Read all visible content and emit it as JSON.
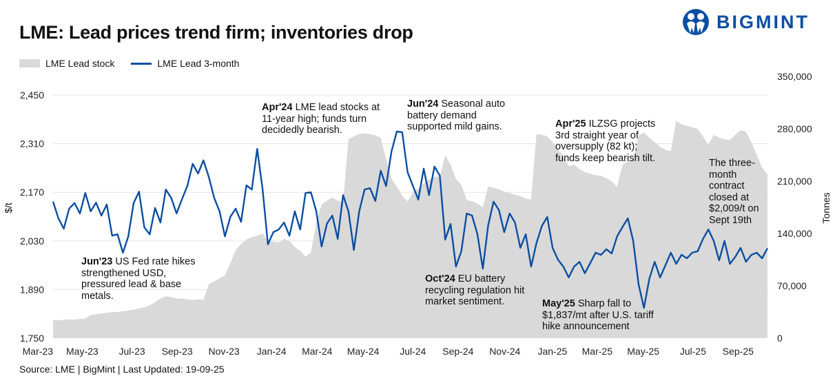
{
  "logo": {
    "text": "BIGMINT",
    "brand_color": "#0b4ea2"
  },
  "source": "Source: LME | BigMint | Last Updated: 19-09-25",
  "chart_data": {
    "type": "line+area",
    "title": "LME: Lead prices trend firm; inventories drop",
    "legend_position": "top-left",
    "grid": true,
    "x": {
      "start": "2023-03-03",
      "end": "2025-09-19",
      "frequency": "weekly",
      "tick_labels": [
        "Mar-23",
        "May-23",
        "Jul-23",
        "Sep-23",
        "Nov-23",
        "Jan-24",
        "Mar-24",
        "May-24",
        "Jul-24",
        "Sep-24",
        "Nov-24",
        "Jan-25",
        "Mar-25",
        "May-25",
        "Jul-25",
        "Sep-25"
      ],
      "tick_dates": [
        "2023-03-01",
        "2023-05-01",
        "2023-07-01",
        "2023-09-01",
        "2023-11-01",
        "2024-01-01",
        "2024-03-01",
        "2024-05-01",
        "2024-07-01",
        "2024-09-01",
        "2024-11-01",
        "2025-01-01",
        "2025-03-01",
        "2025-05-01",
        "2025-07-01",
        "2025-09-01"
      ]
    },
    "y_left": {
      "label": "$/t",
      "ylim": [
        1750,
        2450
      ],
      "tick_labels": [
        "1,750",
        "1,890",
        "2,030",
        "2,170",
        "2,310",
        "2,450"
      ],
      "ticks": [
        1750,
        1890,
        2030,
        2170,
        2310,
        2450
      ]
    },
    "y_right": {
      "label": "Tonnes",
      "ylim": [
        0,
        350000
      ],
      "tick_labels": [
        "0",
        "70,000",
        "140,000",
        "210,000",
        "280,000",
        "350,000"
      ],
      "ticks": [
        0,
        70000,
        140000,
        210000,
        280000,
        350000
      ]
    },
    "series": [
      {
        "name": "LME Lead stock",
        "type": "area",
        "axis": "right",
        "color": "#d9d9d9",
        "values": [
          24000,
          24000,
          24500,
          25000,
          25000,
          25500,
          26000,
          31000,
          32000,
          33000,
          34000,
          35000,
          35000,
          36000,
          37000,
          38000,
          40000,
          41000,
          44000,
          48000,
          53000,
          56000,
          55000,
          53000,
          53000,
          52000,
          51000,
          52000,
          51000,
          72000,
          76000,
          80000,
          84000,
          100000,
          118000,
          126000,
          132000,
          135000,
          137000,
          140000,
          130000,
          129000,
          128000,
          133000,
          130000,
          122000,
          117000,
          109000,
          115000,
          155000,
          179000,
          184000,
          188000,
          184000,
          182000,
          266000,
          270000,
          273000,
          274000,
          273000,
          271000,
          268000,
          240000,
          213000,
          203000,
          190000,
          183000,
          195000,
          200000,
          207000,
          212000,
          216000,
          216000,
          245000,
          232000,
          213000,
          205000,
          185000,
          183000,
          180000,
          175000,
          203000,
          201000,
          199000,
          196000,
          194000,
          192000,
          190000,
          187000,
          185000,
          273000,
          272000,
          270000,
          262000,
          252000,
          243000,
          230000,
          232000,
          226000,
          222000,
          220000,
          218000,
          217000,
          214000,
          210000,
          202000,
          232000,
          236000,
          240000,
          271000,
          275000,
          268000,
          262000,
          256000,
          252000,
          250000,
          291000,
          286000,
          284000,
          282000,
          280000,
          270000,
          258000,
          272000,
          268000,
          266000,
          265000,
          272000,
          278000,
          276000,
          262000,
          245000,
          228000,
          219000
        ]
      },
      {
        "name": "LME Lead 3-month",
        "type": "line",
        "axis": "left",
        "color": "#0b4ea2",
        "values": [
          2143,
          2095,
          2065,
          2123,
          2139,
          2109,
          2168,
          2115,
          2140,
          2103,
          2135,
          2045,
          2049,
          1996,
          2043,
          2139,
          2172,
          2069,
          2049,
          2125,
          2083,
          2178,
          2154,
          2109,
          2150,
          2188,
          2252,
          2224,
          2262,
          2214,
          2154,
          2115,
          2043,
          2099,
          2123,
          2085,
          2190,
          2178,
          2295,
          2180,
          2020,
          2055,
          2063,
          2083,
          2045,
          2115,
          2063,
          2168,
          2170,
          2115,
          2014,
          2080,
          2103,
          2036,
          2162,
          2115,
          2004,
          2115,
          2178,
          2182,
          2145,
          2232,
          2188,
          2287,
          2345,
          2343,
          2228,
          2188,
          2149,
          2238,
          2162,
          2244,
          2218,
          2034,
          2079,
          1956,
          2000,
          2109,
          2103,
          2049,
          1950,
          2075,
          2143,
          2119,
          2055,
          2109,
          2083,
          2010,
          2049,
          1956,
          2024,
          2073,
          2099,
          2010,
          1976,
          1956,
          1925,
          1956,
          1970,
          1937,
          1966,
          1996,
          1990,
          2006,
          1994,
          2043,
          2070,
          2095,
          2030,
          1905,
          1837,
          1921,
          1970,
          1925,
          1960,
          1996,
          1964,
          1990,
          1980,
          1996,
          2000,
          2036,
          2063,
          2030,
          1974,
          2030,
          1964,
          1984,
          2010,
          1970,
          1990,
          1996,
          1980,
          2009
        ]
      }
    ],
    "annotations": [
      {
        "bold": "Jun'23",
        "text": " US Fed rate hikes strengthened USD, pressured lead & base metals."
      },
      {
        "bold": "Apr'24",
        "text": " LME lead stocks at 11-year high; funds turn decidedly bearish."
      },
      {
        "bold": "Jun'24",
        "text": " Seasonal auto battery demand supported mild gains."
      },
      {
        "bold": "Oct'24",
        "text": " EU battery recycling regulation hit market sentiment."
      },
      {
        "bold": "Apr'25",
        "text": " ILZSG projects 3rd straight year of oversupply (82 kt); funds keep bearish tilt."
      },
      {
        "bold": "May'25",
        "text": " Sharp fall to $1,837/mt after U.S. tariff hike announcement"
      },
      {
        "bold": "",
        "text": "The three-month contract closed at $2,009/t on Sept 19th"
      }
    ]
  }
}
